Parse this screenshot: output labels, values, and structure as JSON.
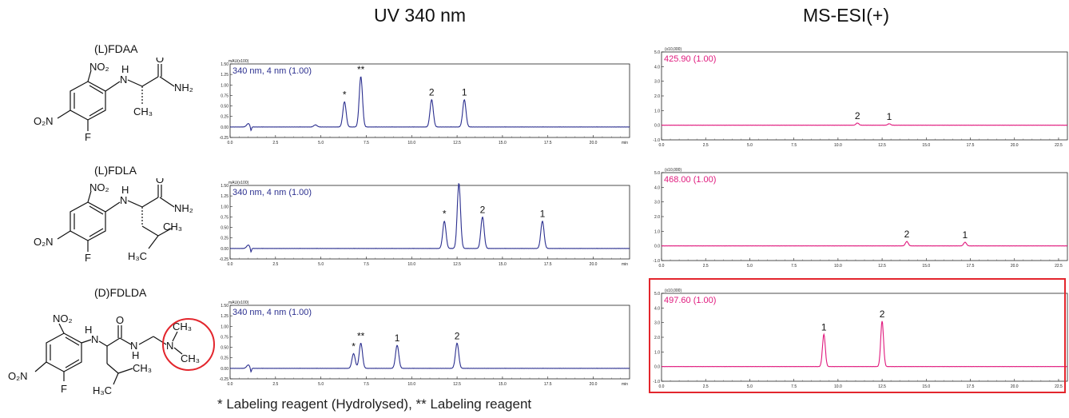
{
  "headers": {
    "uv": "UV 340 nm",
    "ms": "MS-ESI(+)"
  },
  "footnote": "* Labeling reagent (Hydrolysed), ** Labeling reagent",
  "reagents": [
    {
      "prefix": "(",
      "config": "L",
      "suffix": ")FDAA"
    },
    {
      "prefix": "(",
      "config": "L",
      "suffix": ")FDLA"
    },
    {
      "prefix": "(",
      "config": "D",
      "suffix": ")FDLDA"
    }
  ],
  "atom_labels": {
    "no2": "NO₂",
    "o2n": "O₂N",
    "f": "F",
    "h": "H",
    "n": "N",
    "o": "O",
    "nh2": "NH₂",
    "ch3": "CH₃",
    "h3c": "H₃C"
  },
  "highlight_color": "#e3262d",
  "uv_color": "#2b2f8f",
  "ms_color": "#e0197d",
  "uv_panel": {
    "unit_label": "mAU(x100)",
    "y_ticks": [
      "1.50",
      "1.25",
      "1.00",
      "0.75",
      "0.50",
      "0.25",
      "0.00",
      "-0.25"
    ],
    "x_ticks": [
      "0.0",
      "2.5",
      "5.0",
      "7.5",
      "10.0",
      "12.5",
      "15.0",
      "17.5",
      "20.0"
    ],
    "x_unit": "min"
  },
  "ms_panel": {
    "unit_label": "(x10,000)",
    "y_ticks": [
      "5.0",
      "4.0",
      "3.0",
      "2.0",
      "1.0",
      "0.0",
      "-1.0"
    ],
    "x_ticks": [
      "0.0",
      "2.5",
      "5.0",
      "7.5",
      "10.0",
      "12.5",
      "15.0",
      "17.5",
      "20.0",
      "22.5"
    ]
  },
  "chart_data": [
    {
      "type": "line",
      "detector": "UV",
      "legend": "340 nm, 4 nm (1.00)",
      "xlim": [
        0,
        22
      ],
      "ylim": [
        -0.25,
        1.5
      ],
      "peaks": [
        {
          "x": 1.0,
          "y": 0.08,
          "label": ""
        },
        {
          "x": 4.7,
          "y": 0.05,
          "label": ""
        },
        {
          "x": 6.3,
          "y": 0.6,
          "label": "*"
        },
        {
          "x": 7.2,
          "y": 1.2,
          "label": "**"
        },
        {
          "x": 11.1,
          "y": 0.65,
          "label": "2"
        },
        {
          "x": 12.9,
          "y": 0.65,
          "label": "1"
        }
      ]
    },
    {
      "type": "line",
      "detector": "UV",
      "legend": "340 nm, 4 nm (1.00)",
      "xlim": [
        0,
        22
      ],
      "ylim": [
        -0.25,
        1.5
      ],
      "peaks": [
        {
          "x": 1.0,
          "y": 0.08,
          "label": ""
        },
        {
          "x": 11.8,
          "y": 0.65,
          "label": "*"
        },
        {
          "x": 12.6,
          "y": 1.55,
          "label": "**"
        },
        {
          "x": 13.9,
          "y": 0.75,
          "label": "2"
        },
        {
          "x": 17.2,
          "y": 0.65,
          "label": "1"
        }
      ]
    },
    {
      "type": "line",
      "detector": "UV",
      "legend": "340 nm, 4 nm (1.00)",
      "xlim": [
        0,
        22
      ],
      "ylim": [
        -0.25,
        1.5
      ],
      "peaks": [
        {
          "x": 1.0,
          "y": 0.08,
          "label": ""
        },
        {
          "x": 6.8,
          "y": 0.35,
          "label": "*"
        },
        {
          "x": 7.2,
          "y": 0.6,
          "label": "**"
        },
        {
          "x": 9.2,
          "y": 0.55,
          "label": "1"
        },
        {
          "x": 12.5,
          "y": 0.6,
          "label": "2"
        }
      ]
    },
    {
      "type": "line",
      "detector": "MS-ESI(+)",
      "legend": "425.90 (1.00)",
      "xlim": [
        0,
        23
      ],
      "ylim": [
        -1.0,
        5.0
      ],
      "peaks": [
        {
          "x": 11.1,
          "y": 0.15,
          "label": "2"
        },
        {
          "x": 12.9,
          "y": 0.1,
          "label": "1"
        }
      ]
    },
    {
      "type": "line",
      "detector": "MS-ESI(+)",
      "legend": "468.00 (1.00)",
      "xlim": [
        0,
        23
      ],
      "ylim": [
        -1.0,
        5.0
      ],
      "peaks": [
        {
          "x": 13.9,
          "y": 0.3,
          "label": "2"
        },
        {
          "x": 17.2,
          "y": 0.25,
          "label": "1"
        }
      ]
    },
    {
      "type": "line",
      "detector": "MS-ESI(+)",
      "legend": "497.60 (1.00)",
      "xlim": [
        0,
        23
      ],
      "ylim": [
        -1.0,
        5.0
      ],
      "peaks": [
        {
          "x": 9.2,
          "y": 2.2,
          "label": "1"
        },
        {
          "x": 12.5,
          "y": 3.1,
          "label": "2"
        }
      ]
    }
  ]
}
